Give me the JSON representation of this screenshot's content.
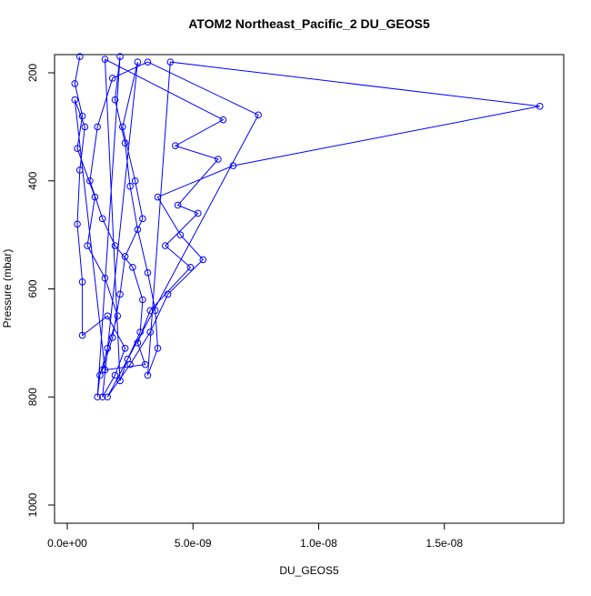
{
  "chart_data": {
    "type": "line",
    "title": "ATOM2 Northeast_Pacific_2 DU_GEOS5",
    "x_label": "DU_GEOS5",
    "y_label": "Pressure (mbar)",
    "color": "#0000ff",
    "y_reversed": true,
    "x": [
      5e-10,
      3e-10,
      6e-10,
      4e-10,
      1.1e-09,
      8e-10,
      1.5e-09,
      2e-09,
      1.6e-09,
      1.3e-09,
      1.2e-09,
      2.1e-09,
      1.9e-09,
      2.3e-09,
      2.5e-09,
      2.8e-09,
      3.2e-09,
      3.5e-09,
      3.6e-09,
      3.2e-09,
      4.1e-09,
      1.88e-08,
      6.6e-09,
      3.6e-09,
      4.5e-09,
      5.4e-09,
      4e-09,
      3.3e-09,
      2.5e-09,
      1.6e-09,
      7.6e-09,
      3.2e-09,
      1.8e-09,
      1.2e-09,
      9e-10,
      1.4e-09,
      1.9e-09,
      2.6e-09,
      3e-09,
      2.9e-09,
      2.4e-09,
      2.1e-09,
      1.5e-09,
      6.2e-09,
      4.3e-09,
      6e-09,
      4.4e-09,
      5.2e-09,
      3.9e-09,
      4.9e-09,
      3.3e-09,
      2.8e-09,
      3.1e-09,
      1.5e-09,
      3e-10,
      7e-10,
      5e-10,
      4e-10,
      6e-10,
      6e-10,
      1.6e-09,
      2.3e-09,
      1.9e-09,
      1.4e-09,
      2.8e-09,
      2.2e-09,
      2.7e-09,
      3e-09,
      2.3e-09,
      2.1e-09,
      1.8e-09,
      1.4e-09
    ],
    "values": [
      170,
      220,
      280,
      340,
      430,
      520,
      580,
      650,
      710,
      760,
      800,
      170,
      250,
      330,
      410,
      490,
      570,
      640,
      710,
      760,
      180,
      262,
      372,
      430,
      500,
      546,
      610,
      680,
      740,
      800,
      278,
      180,
      210,
      300,
      400,
      470,
      520,
      560,
      620,
      680,
      730,
      770,
      175,
      287,
      335,
      360,
      445,
      460,
      520,
      560,
      640,
      700,
      740,
      750,
      250,
      300,
      380,
      480,
      587,
      686,
      650,
      710,
      760,
      800,
      180,
      300,
      400,
      470,
      540,
      610,
      690,
      750
    ],
    "xlim": [
      -5.06e-10,
      1.975e-08
    ],
    "xticks": [
      {
        "value": 0,
        "label": "0.0e+00"
      },
      {
        "value": 5e-09,
        "label": "5.0e-09"
      },
      {
        "value": 1e-08,
        "label": "1.0e-08"
      },
      {
        "value": 1.5e-08,
        "label": "1.5e-08"
      }
    ],
    "ylim": [
      1033.7,
      166.3
    ],
    "yticks": [
      200,
      400,
      600,
      800,
      1000
    ]
  }
}
